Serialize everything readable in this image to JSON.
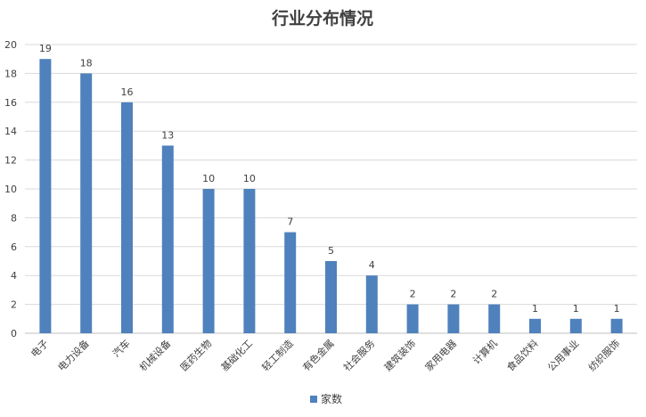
{
  "chart_data": {
    "type": "bar",
    "title": "行业分布情况",
    "categories": [
      "电子",
      "电力设备",
      "汽车",
      "机械设备",
      "医药生物",
      "基础化工",
      "轻工制造",
      "有色金属",
      "社会服务",
      "建筑装饰",
      "家用电器",
      "计算机",
      "食品饮料",
      "公用事业",
      "纺织服饰"
    ],
    "series": [
      {
        "name": "家数",
        "values": [
          19,
          18,
          16,
          13,
          10,
          10,
          7,
          5,
          4,
          2,
          2,
          2,
          1,
          1,
          1
        ]
      }
    ],
    "xlabel": "",
    "ylabel": "",
    "ylim": [
      0,
      20
    ],
    "yticks": [
      0,
      2,
      4,
      6,
      8,
      10,
      12,
      14,
      16,
      18,
      20
    ],
    "grid": true,
    "legend_position": "bottom",
    "colors": {
      "bar": "#4f81bd",
      "grid": "#d9d9d9",
      "axis": "#bfbfbf",
      "text": "#404040"
    }
  }
}
